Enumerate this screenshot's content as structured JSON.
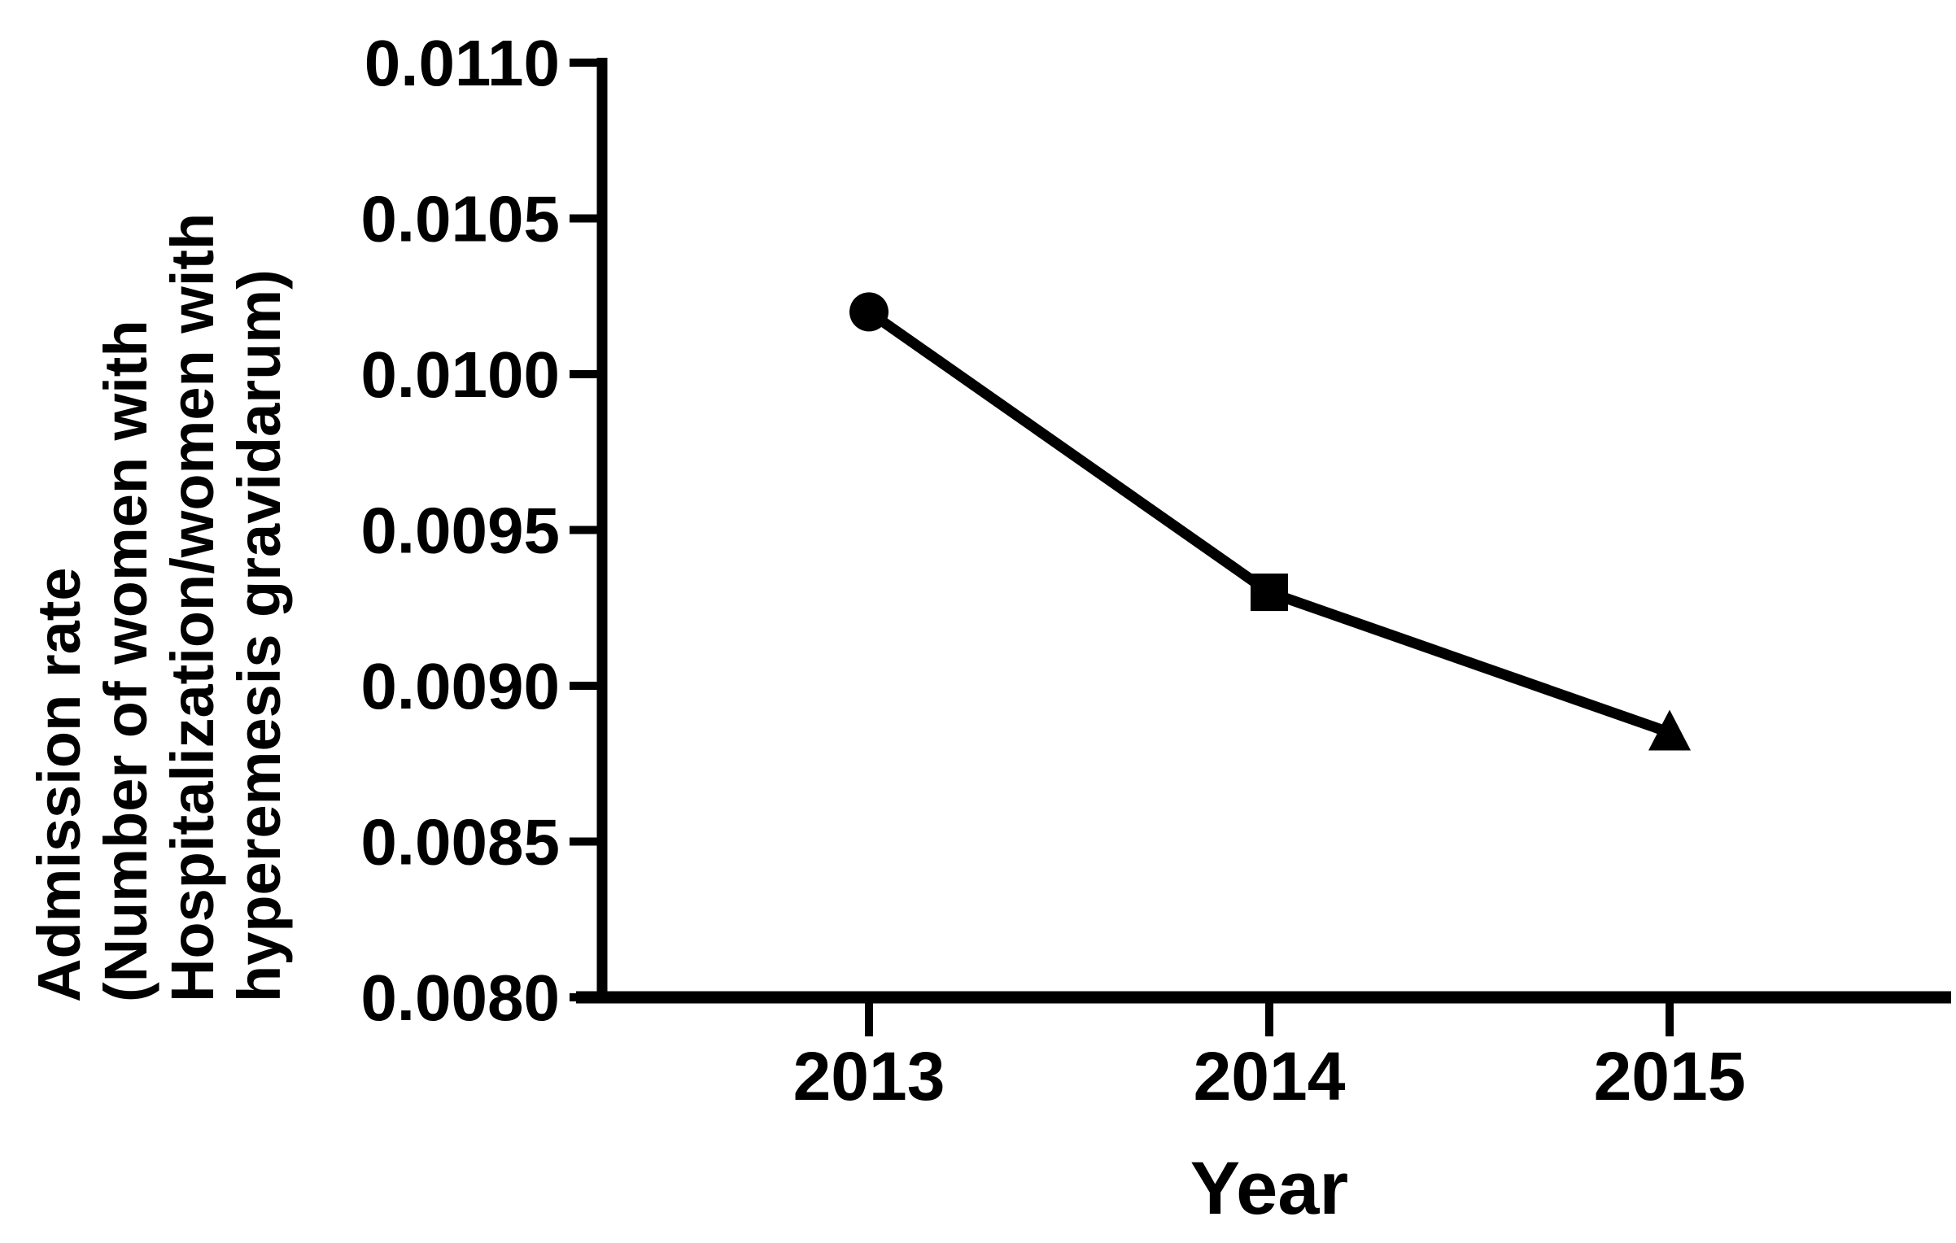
{
  "chart_data": {
    "type": "line",
    "categories": [
      "2013",
      "2014",
      "2015"
    ],
    "series": [
      {
        "values": [
          0.0102,
          0.0093,
          0.00885
        ],
        "markers": [
          "circle",
          "square",
          "triangle"
        ],
        "color": "#000000"
      }
    ],
    "xlabel": "Year",
    "ylabel_lines": [
      "Admission rate",
      "(Number of women with",
      "Hospitalization/women with",
      "hyperemesis gravidarum)"
    ],
    "ylim": [
      0.008,
      0.011
    ],
    "yticks": [
      0.011,
      0.0105,
      0.01,
      0.0095,
      0.009,
      0.0085,
      0.008
    ],
    "ytick_labels": [
      "0.0110",
      "0.0105",
      "0.0100",
      "0.0095",
      "0.0090",
      "0.0085",
      "0.0080"
    ],
    "grid": false,
    "legend": "none",
    "colors": {
      "foreground": "#000000",
      "background": "#ffffff"
    }
  }
}
